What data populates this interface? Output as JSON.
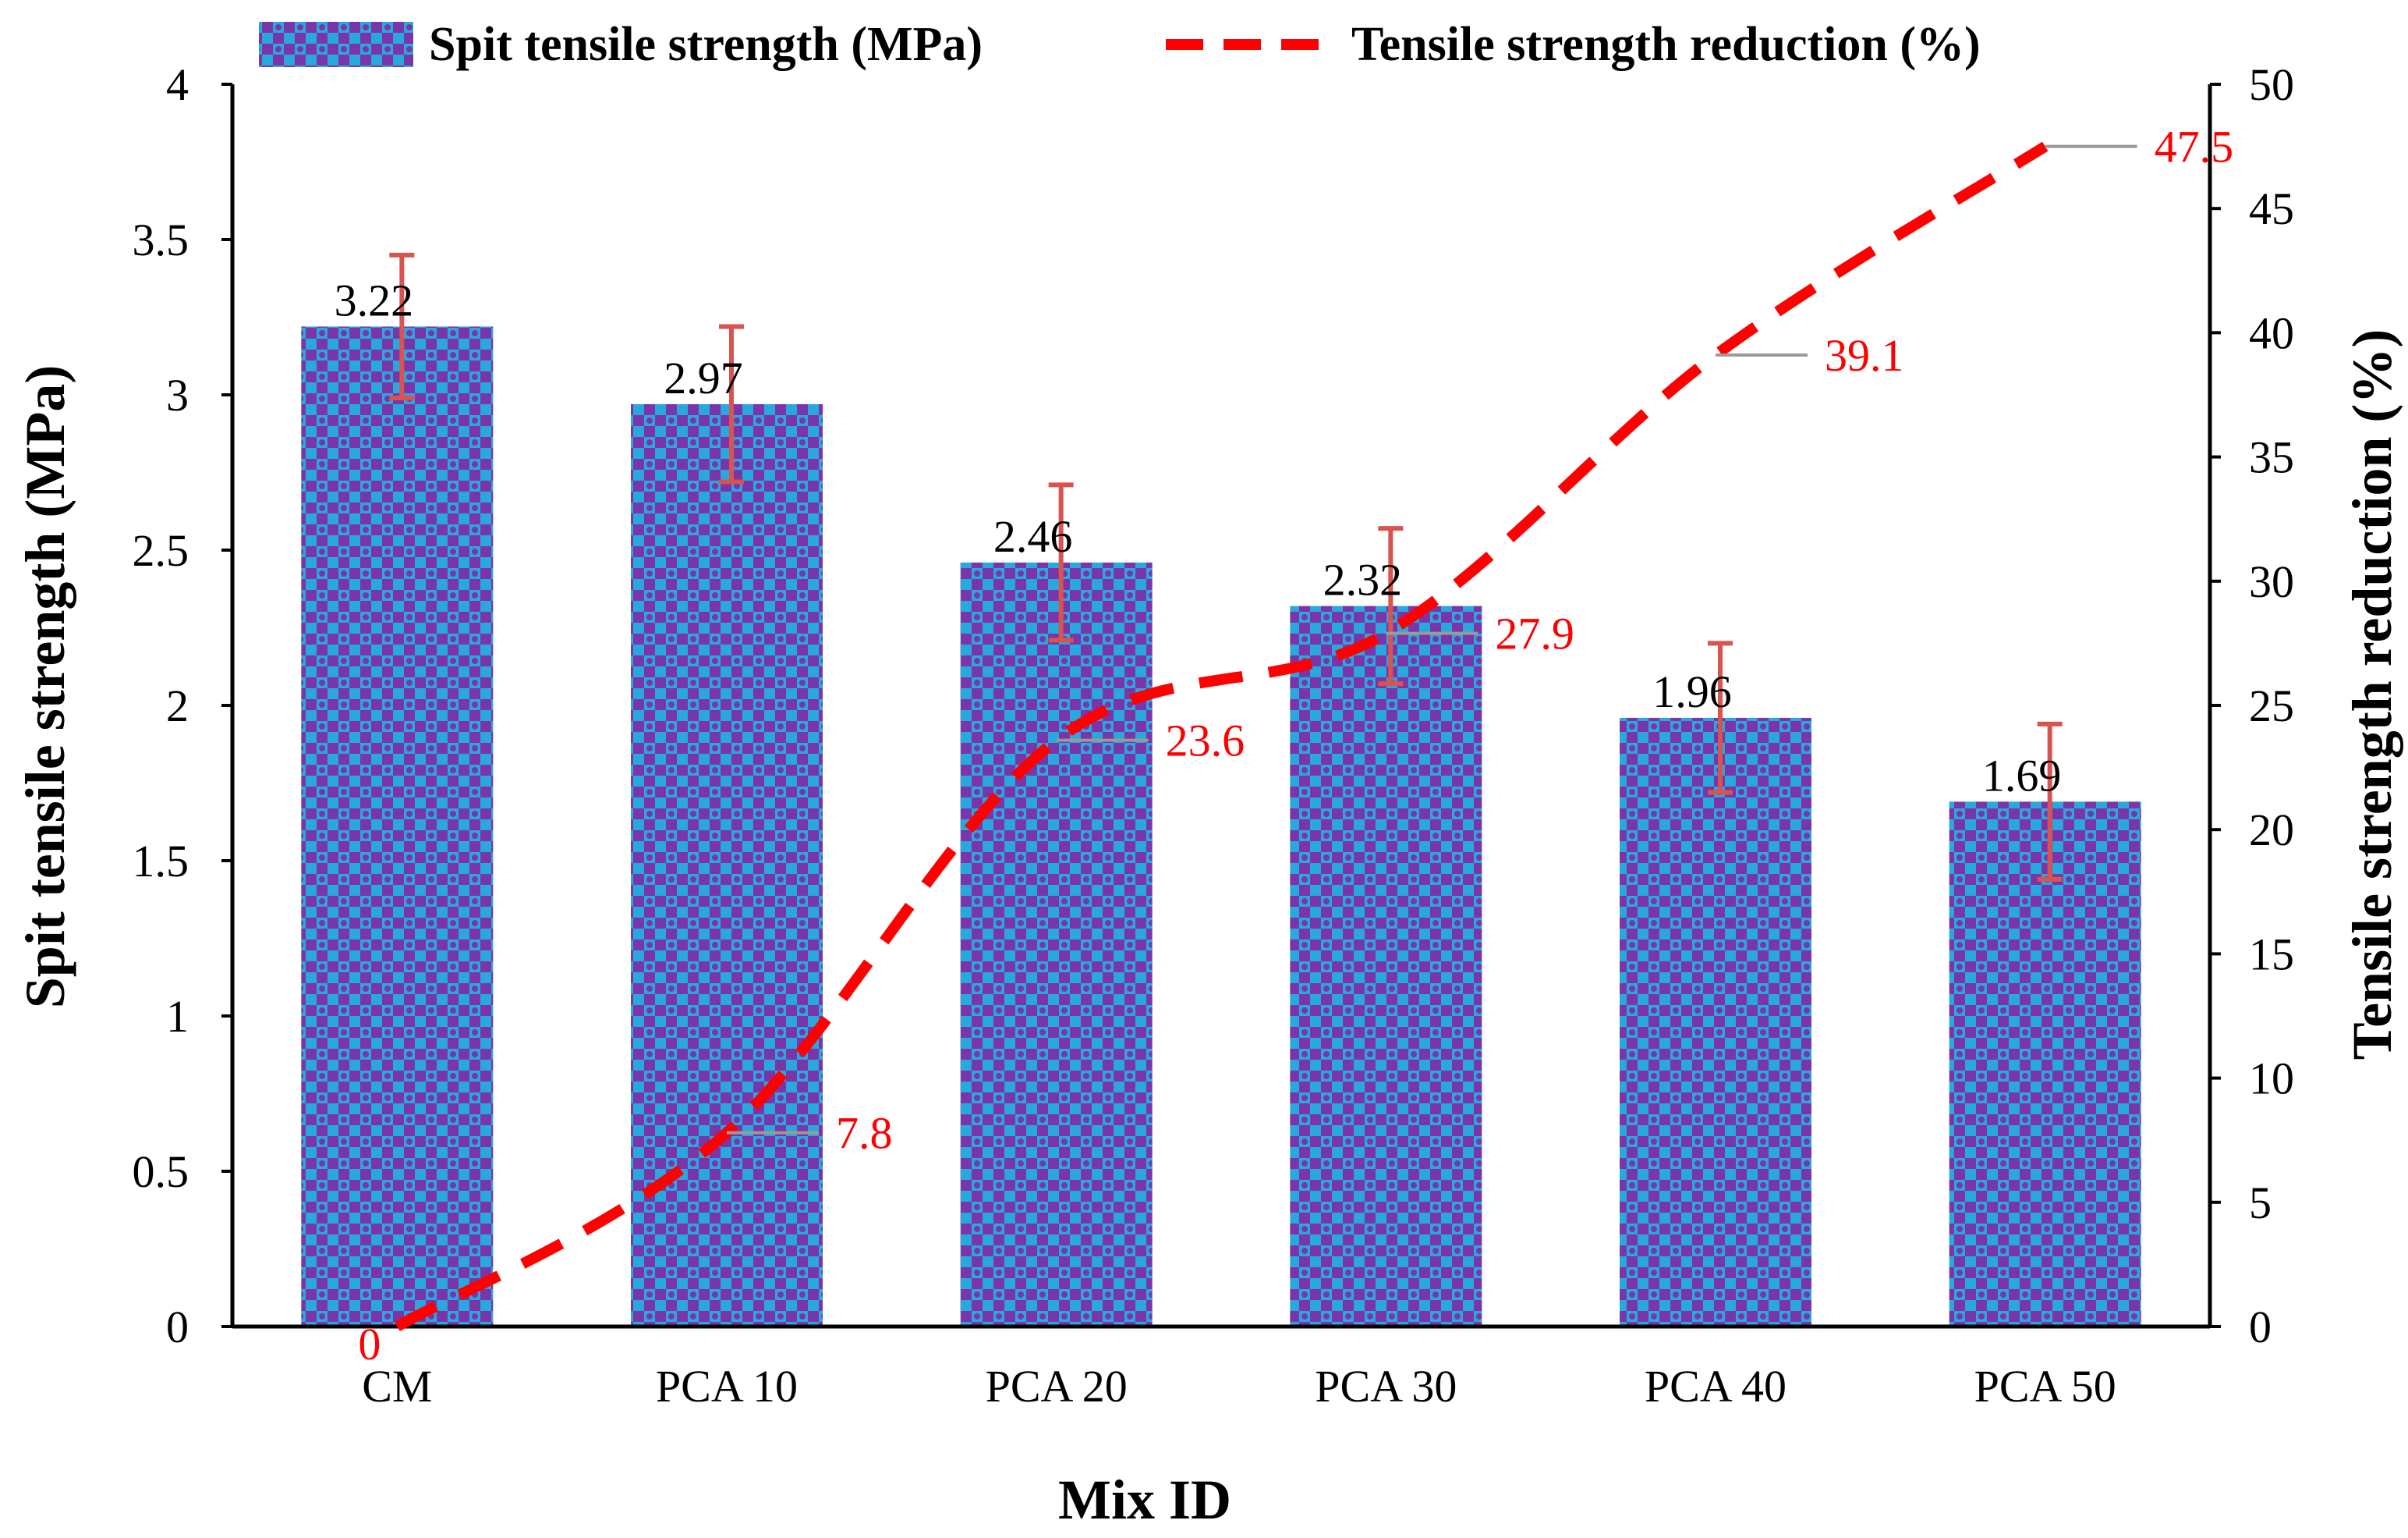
{
  "chart_data": {
    "type": "bar",
    "categories": [
      "CM",
      "PCA 10",
      "PCA 20",
      "PCA 30",
      "PCA 40",
      "PCA 50"
    ],
    "series": [
      {
        "name": "Spit tensile strength (MPa)",
        "type": "bar",
        "axis": "left",
        "values": [
          3.22,
          2.97,
          2.46,
          2.32,
          1.96,
          1.69
        ],
        "labels": [
          "3.22",
          "2.97",
          "2.46",
          "2.32",
          "1.96",
          "1.69"
        ],
        "error": [
          0.23,
          0.25,
          0.25,
          0.25,
          0.24,
          0.25
        ],
        "color": "#29a8e0",
        "pattern_color": "#7a35a8",
        "error_color": "#d9534f"
      },
      {
        "name": "Tensile strength reduction (%)",
        "type": "line",
        "axis": "right",
        "values": [
          0,
          7.8,
          23.6,
          27.9,
          39.1,
          47.5
        ],
        "labels": [
          "0",
          "7.8",
          "23.6",
          "27.9",
          "39.1",
          "47.5"
        ],
        "color": "#ff0000",
        "dash": "dashed"
      }
    ],
    "xlabel": "Mix ID",
    "ylabel": "Spit tensile strength (MPa)",
    "y2label": "Tensile strength reduction (%)",
    "ylim": [
      0,
      4
    ],
    "yticks": [
      "0",
      "0.5",
      "1",
      "1.5",
      "2",
      "2.5",
      "3",
      "3.5",
      "4"
    ],
    "y2lim": [
      0,
      50
    ],
    "y2ticks": [
      "0",
      "5",
      "10",
      "15",
      "20",
      "25",
      "30",
      "35",
      "40",
      "45",
      "50"
    ],
    "legend_position": "top",
    "grid": false
  }
}
